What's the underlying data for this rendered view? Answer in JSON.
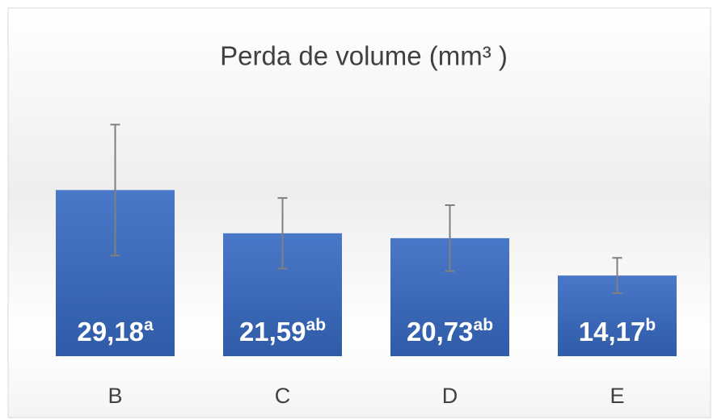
{
  "chart_data": {
    "type": "bar",
    "title": "Perda de volume (mm³ )",
    "categories": [
      "B",
      "C",
      "D",
      "E"
    ],
    "values": [
      29.18,
      21.59,
      20.73,
      14.17
    ],
    "value_labels": [
      "29,18",
      "21,59",
      "20,73",
      "14,17"
    ],
    "letters": [
      "a",
      "ab",
      "ab",
      "b"
    ],
    "errors": [
      11.5,
      6.2,
      5.8,
      3.1
    ],
    "color": "#4472c4",
    "error_color": "#808080",
    "ylim": [
      0,
      41
    ]
  }
}
